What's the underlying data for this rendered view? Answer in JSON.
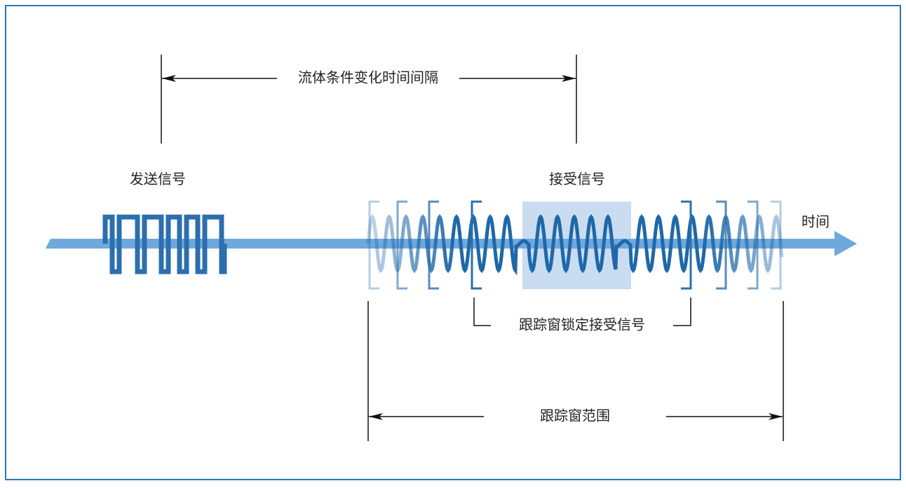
{
  "labels": {
    "interval": "流体条件变化时间间隔",
    "sent": "发送信号",
    "received": "接受信号",
    "time": "时间",
    "locked": "跟踪窗锁定接受信号",
    "range": "跟踪窗范围"
  }
}
